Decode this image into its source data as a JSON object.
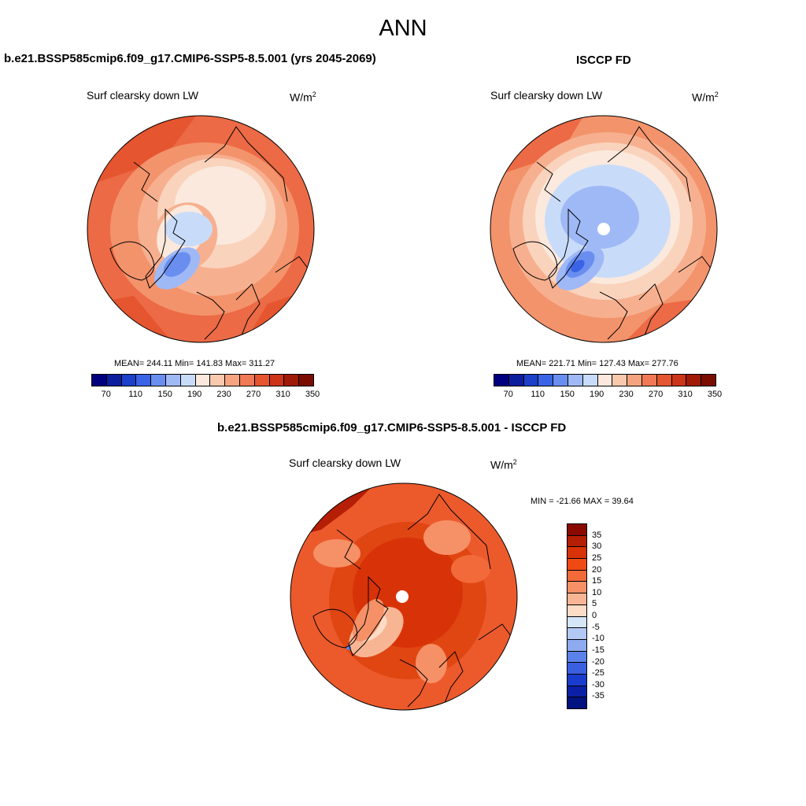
{
  "title": "ANN",
  "panels": {
    "model": {
      "title": "b.e21.BSSP585cmip6.f09_g17.CMIP6-SSP5-8.5.001 (yrs 2045-2069)",
      "variable": "Surf clearsky down LW",
      "units": "W/m",
      "units_sup": "2",
      "stats": "MEAN= 244.11  Min= 141.83  Max= 311.27"
    },
    "obs": {
      "title": "ISCCP FD",
      "variable": "Surf clearsky down LW",
      "units": "W/m",
      "units_sup": "2",
      "stats": "MEAN= 221.71  Min= 127.43  Max= 277.76"
    },
    "diff": {
      "title": "b.e21.BSSP585cmip6.f09_g17.CMIP6-SSP5-8.5.001 - ISCCP FD",
      "variable": "Surf clearsky down LW",
      "units": "W/m",
      "units_sup": "2",
      "stats": "MIN = -21.66 MAX =  39.64"
    }
  },
  "colorbars": {
    "abs_colors": [
      "#00007f",
      "#0a1e9e",
      "#1c40c8",
      "#3a63e6",
      "#6a8ef0",
      "#9fb9f6",
      "#c8dcfa",
      "#fbe9dd",
      "#f9c9ad",
      "#f5a47f",
      "#f07a55",
      "#e5552f",
      "#cc3518",
      "#a01b07",
      "#7a0c00"
    ],
    "abs_ticks": [
      "70",
      "110",
      "150",
      "190",
      "230",
      "270",
      "310",
      "350"
    ],
    "diff_colors": [
      "#8a0a00",
      "#b51f05",
      "#d83308",
      "#f04a14",
      "#f26a3a",
      "#f69067",
      "#f8b594",
      "#fcdcc6",
      "#d6e6f9",
      "#b3c9f4",
      "#8fabf0",
      "#5b82ea",
      "#3a5fe0",
      "#1a3ccc",
      "#0a20a6",
      "#00127f"
    ],
    "diff_ticks": [
      "35",
      "30",
      "25",
      "20",
      "15",
      "10",
      "5",
      "0",
      "-5",
      "-10",
      "-15",
      "-20",
      "-25",
      "-30",
      "-35"
    ]
  }
}
